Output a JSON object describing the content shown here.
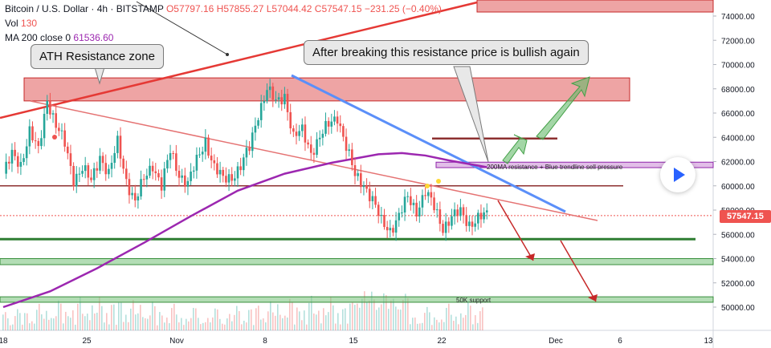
{
  "header": {
    "symbol": "Bitcoin / U.S. Dollar · 4h · BITSTAMP",
    "ohlc": "O57797.16 H57855.27 L57044.42 C57547.15 −231.25 (−0.40%)",
    "vol_label": "Vol",
    "vol_value": "130",
    "ma_label": "MA 200 close 0",
    "ma_value": "61536.60"
  },
  "annotations": {
    "ath": "ATH Resistance zone",
    "breakout": "After breaking this resistance price is bullish again",
    "ma_resistance": "200MA resistance + Blue trendline sell pressure",
    "support_50k": "50K support"
  },
  "price_tag": "57547.15",
  "colors": {
    "up": "#26a69a",
    "down": "#ef5350",
    "ma": "#9c27b0",
    "trend": "#5b8ff9",
    "zone": "#e57373",
    "support": "#66bb6a"
  },
  "chart_data": {
    "type": "candlestick",
    "y_axis_ticks": [
      "74000.00",
      "72000.00",
      "70000.00",
      "68000.00",
      "66000.00",
      "64000.00",
      "62000.00",
      "60000.00",
      "58000.00",
      "56000.00",
      "54000.00",
      "52000.00",
      "50000.00"
    ],
    "x_axis_ticks": [
      "18",
      "25",
      "Nov",
      "8",
      "15",
      "22",
      "Dec",
      "6",
      "13"
    ],
    "ylim": [
      48800,
      75200
    ],
    "last_close": 57547.15,
    "ohlc_path": [
      [
        0,
        61000
      ],
      [
        3,
        62500
      ],
      [
        6,
        61800
      ],
      [
        9,
        64500
      ],
      [
        12,
        62800
      ],
      [
        15,
        67200
      ],
      [
        18,
        65000
      ],
      [
        21,
        63400
      ],
      [
        24,
        60600
      ],
      [
        27,
        61500
      ],
      [
        30,
        60300
      ],
      [
        33,
        62500
      ],
      [
        36,
        61000
      ],
      [
        39,
        63500
      ],
      [
        42,
        60500
      ],
      [
        45,
        58700
      ],
      [
        48,
        60500
      ],
      [
        51,
        61800
      ],
      [
        54,
        60000
      ],
      [
        57,
        62800
      ],
      [
        60,
        61000
      ],
      [
        63,
        60200
      ],
      [
        66,
        62000
      ],
      [
        69,
        63800
      ],
      [
        72,
        61500
      ],
      [
        75,
        60500
      ],
      [
        78,
        60800
      ],
      [
        81,
        61600
      ],
      [
        84,
        63100
      ],
      [
        87,
        66000
      ],
      [
        90,
        68000
      ],
      [
        93,
        66800
      ],
      [
        96,
        67500
      ],
      [
        99,
        64000
      ],
      [
        102,
        64500
      ],
      [
        105,
        62800
      ],
      [
        108,
        64000
      ],
      [
        111,
        65000
      ],
      [
        114,
        65800
      ],
      [
        117,
        63200
      ],
      [
        120,
        60800
      ],
      [
        123,
        60200
      ],
      [
        126,
        58800
      ],
      [
        129,
        57000
      ],
      [
        132,
        56400
      ],
      [
        135,
        57500
      ],
      [
        138,
        59000
      ],
      [
        141,
        58000
      ],
      [
        144,
        59500
      ],
      [
        147,
        58200
      ],
      [
        150,
        56600
      ],
      [
        153,
        57400
      ],
      [
        156,
        57800
      ],
      [
        159,
        56900
      ],
      [
        162,
        57300
      ],
      [
        165,
        57550
      ]
    ],
    "ma200": [
      [
        0,
        50000
      ],
      [
        16,
        51300
      ],
      [
        32,
        53200
      ],
      [
        48,
        55300
      ],
      [
        64,
        57500
      ],
      [
        80,
        59600
      ],
      [
        96,
        61000
      ],
      [
        112,
        61900
      ],
      [
        128,
        62600
      ],
      [
        136,
        62700
      ],
      [
        144,
        62500
      ],
      [
        152,
        62100
      ],
      [
        165,
        61540
      ]
    ],
    "zones": [
      {
        "label": "ATH Resistance zone",
        "low": 67000,
        "high": 68900
      },
      {
        "label": "200MA resistance + Blue trendline sell pressure",
        "low": 61500,
        "high": 61950
      },
      {
        "label": "50K support",
        "low": 50400,
        "high": 50850
      }
    ],
    "levels": [
      63900,
      60000,
      55600,
      53800
    ]
  }
}
